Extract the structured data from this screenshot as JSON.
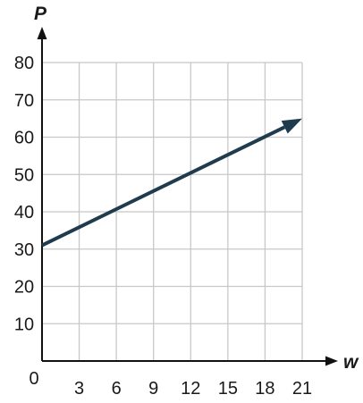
{
  "chart_data": {
    "type": "line",
    "title": "",
    "xlabel": "w",
    "ylabel": "P",
    "xlim": [
      0,
      21
    ],
    "ylim": [
      0,
      80
    ],
    "x_ticks": [
      3,
      6,
      9,
      12,
      15,
      18,
      21
    ],
    "y_ticks": [
      10,
      20,
      30,
      40,
      50,
      60,
      70,
      80
    ],
    "origin_label": "0",
    "grid": true,
    "series": [
      {
        "color": "#1f3b4d",
        "arrow_end": true,
        "points": [
          {
            "x": 0,
            "y": 31
          },
          {
            "x": 21,
            "y": 65
          }
        ]
      }
    ]
  }
}
